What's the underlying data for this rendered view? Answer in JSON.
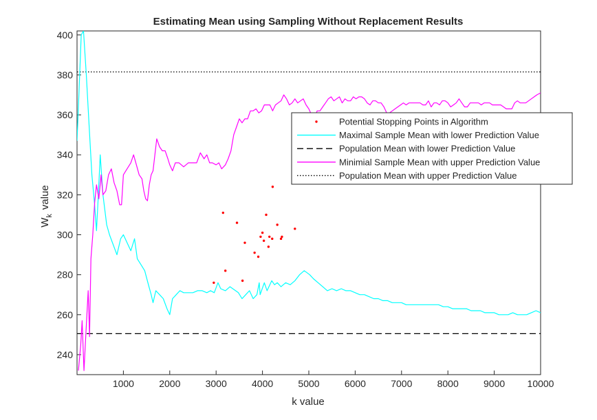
{
  "chart_data": {
    "type": "line",
    "title": "Estimating Mean using Sampling Without Replacement Results",
    "xlabel": "k value",
    "ylabel_main": "W",
    "ylabel_sub": "k",
    "ylabel_tail": "value",
    "xlim": [
      0,
      10000
    ],
    "ylim": [
      230,
      402
    ],
    "xticks": [
      1000,
      2000,
      3000,
      4000,
      5000,
      6000,
      7000,
      8000,
      9000,
      10000
    ],
    "yticks": [
      240,
      260,
      280,
      300,
      320,
      340,
      360,
      380,
      400
    ],
    "grid": false,
    "legend_position": "upper-right",
    "series": [
      {
        "name": "Potential Stopping Points in Algorithm",
        "kind": "scatter",
        "color": "#ff0000",
        "points": [
          [
            2950,
            276
          ],
          [
            3150,
            311
          ],
          [
            3200,
            282
          ],
          [
            3450,
            306
          ],
          [
            3570,
            277
          ],
          [
            3620,
            296
          ],
          [
            3830,
            291
          ],
          [
            3910,
            289
          ],
          [
            3960,
            299
          ],
          [
            4000,
            301
          ],
          [
            4030,
            297
          ],
          [
            4080,
            310
          ],
          [
            4130,
            294
          ],
          [
            4150,
            299
          ],
          [
            4210,
            298
          ],
          [
            4220,
            324
          ],
          [
            4320,
            305
          ],
          [
            4400,
            298
          ],
          [
            4420,
            299
          ],
          [
            4700,
            303
          ]
        ]
      },
      {
        "name": "Maximal Sample Mean with lower Prediction Value",
        "kind": "line",
        "color": "#00ffff",
        "dash": "solid",
        "points": [
          [
            0,
            347
          ],
          [
            40,
            370
          ],
          [
            90,
            400
          ],
          [
            140,
            402
          ],
          [
            200,
            380
          ],
          [
            260,
            355
          ],
          [
            320,
            330
          ],
          [
            380,
            315
          ],
          [
            420,
            302
          ],
          [
            460,
            320
          ],
          [
            500,
            340
          ],
          [
            560,
            320
          ],
          [
            640,
            305
          ],
          [
            700,
            300
          ],
          [
            780,
            295
          ],
          [
            860,
            290
          ],
          [
            940,
            298
          ],
          [
            1000,
            300
          ],
          [
            1080,
            296
          ],
          [
            1160,
            292
          ],
          [
            1240,
            298
          ],
          [
            1300,
            288
          ],
          [
            1380,
            285
          ],
          [
            1460,
            282
          ],
          [
            1540,
            275
          ],
          [
            1600,
            270
          ],
          [
            1640,
            266
          ],
          [
            1700,
            272
          ],
          [
            1780,
            270
          ],
          [
            1860,
            268
          ],
          [
            1940,
            263
          ],
          [
            2000,
            260
          ],
          [
            2060,
            268
          ],
          [
            2140,
            270
          ],
          [
            2220,
            272
          ],
          [
            2300,
            271
          ],
          [
            2400,
            271
          ],
          [
            2500,
            271
          ],
          [
            2600,
            272
          ],
          [
            2700,
            272
          ],
          [
            2800,
            271
          ],
          [
            2880,
            272
          ],
          [
            2960,
            271
          ],
          [
            3040,
            276
          ],
          [
            3100,
            273
          ],
          [
            3200,
            272
          ],
          [
            3300,
            274
          ],
          [
            3420,
            272
          ],
          [
            3480,
            271
          ],
          [
            3560,
            268
          ],
          [
            3640,
            270
          ],
          [
            3720,
            272
          ],
          [
            3800,
            268
          ],
          [
            3880,
            270
          ],
          [
            3930,
            276
          ],
          [
            3950,
            270
          ],
          [
            4040,
            276
          ],
          [
            4100,
            272
          ],
          [
            4200,
            277
          ],
          [
            4260,
            275
          ],
          [
            4320,
            276
          ],
          [
            4400,
            274
          ],
          [
            4500,
            276
          ],
          [
            4600,
            275
          ],
          [
            4700,
            277
          ],
          [
            4800,
            280
          ],
          [
            4900,
            282
          ],
          [
            4960,
            281
          ],
          [
            5020,
            280
          ],
          [
            5100,
            278
          ],
          [
            5200,
            276
          ],
          [
            5300,
            274
          ],
          [
            5400,
            272
          ],
          [
            5500,
            273
          ],
          [
            5600,
            272
          ],
          [
            5700,
            273
          ],
          [
            5800,
            272
          ],
          [
            5900,
            272
          ],
          [
            6000,
            271
          ],
          [
            6100,
            270
          ],
          [
            6200,
            270
          ],
          [
            6300,
            269
          ],
          [
            6400,
            268
          ],
          [
            6500,
            268
          ],
          [
            6600,
            267
          ],
          [
            6700,
            267
          ],
          [
            6800,
            266
          ],
          [
            6900,
            266
          ],
          [
            7000,
            266
          ],
          [
            7100,
            265
          ],
          [
            7200,
            265
          ],
          [
            7300,
            265
          ],
          [
            7400,
            265
          ],
          [
            7500,
            265
          ],
          [
            7600,
            265
          ],
          [
            7700,
            265
          ],
          [
            7800,
            265
          ],
          [
            7900,
            264
          ],
          [
            8000,
            264
          ],
          [
            8100,
            263
          ],
          [
            8200,
            263
          ],
          [
            8300,
            263
          ],
          [
            8400,
            263
          ],
          [
            8500,
            262
          ],
          [
            8600,
            262
          ],
          [
            8700,
            262
          ],
          [
            8800,
            261
          ],
          [
            8900,
            261
          ],
          [
            9000,
            261
          ],
          [
            9100,
            260
          ],
          [
            9200,
            260
          ],
          [
            9300,
            260
          ],
          [
            9400,
            261
          ],
          [
            9500,
            260
          ],
          [
            9600,
            260
          ],
          [
            9700,
            260
          ],
          [
            9800,
            261
          ],
          [
            9900,
            262
          ],
          [
            10000,
            261
          ]
        ]
      },
      {
        "name": "Population Mean with lower Prediction Value",
        "kind": "line",
        "color": "#000000",
        "dash": "dashed",
        "points": [
          [
            0,
            250.5
          ],
          [
            10000,
            250.5
          ]
        ]
      },
      {
        "name": "Minimial Sample Mean with upper Prediction Value",
        "kind": "line",
        "color": "#ff00ff",
        "dash": "solid",
        "points": [
          [
            30,
            232
          ],
          [
            80,
            245
          ],
          [
            110,
            257
          ],
          [
            150,
            232
          ],
          [
            190,
            250
          ],
          [
            240,
            272
          ],
          [
            270,
            249
          ],
          [
            300,
            288
          ],
          [
            340,
            300
          ],
          [
            380,
            316
          ],
          [
            420,
            325
          ],
          [
            470,
            318
          ],
          [
            520,
            330
          ],
          [
            560,
            320
          ],
          [
            620,
            322
          ],
          [
            680,
            330
          ],
          [
            740,
            333
          ],
          [
            800,
            326
          ],
          [
            860,
            322
          ],
          [
            920,
            315
          ],
          [
            960,
            315
          ],
          [
            1000,
            330
          ],
          [
            1080,
            333
          ],
          [
            1160,
            336
          ],
          [
            1220,
            340
          ],
          [
            1280,
            335
          ],
          [
            1340,
            330
          ],
          [
            1400,
            328
          ],
          [
            1440,
            322
          ],
          [
            1480,
            318
          ],
          [
            1520,
            317
          ],
          [
            1560,
            325
          ],
          [
            1600,
            330
          ],
          [
            1640,
            332
          ],
          [
            1680,
            340
          ],
          [
            1720,
            348
          ],
          [
            1780,
            344
          ],
          [
            1840,
            342
          ],
          [
            1900,
            342
          ],
          [
            1960,
            338
          ],
          [
            2000,
            335
          ],
          [
            2060,
            332
          ],
          [
            2120,
            336
          ],
          [
            2200,
            336
          ],
          [
            2300,
            334
          ],
          [
            2400,
            336
          ],
          [
            2500,
            336
          ],
          [
            2580,
            336
          ],
          [
            2660,
            341
          ],
          [
            2740,
            338
          ],
          [
            2800,
            340
          ],
          [
            2860,
            336
          ],
          [
            2920,
            336
          ],
          [
            3000,
            335
          ],
          [
            3060,
            336
          ],
          [
            3120,
            333
          ],
          [
            3200,
            335
          ],
          [
            3260,
            338
          ],
          [
            3320,
            342
          ],
          [
            3380,
            350
          ],
          [
            3440,
            354
          ],
          [
            3500,
            358
          ],
          [
            3560,
            356
          ],
          [
            3620,
            358
          ],
          [
            3680,
            358
          ],
          [
            3740,
            362
          ],
          [
            3800,
            362
          ],
          [
            3860,
            363
          ],
          [
            3920,
            361
          ],
          [
            3980,
            362
          ],
          [
            4040,
            365
          ],
          [
            4100,
            365
          ],
          [
            4160,
            365
          ],
          [
            4220,
            362
          ],
          [
            4280,
            365
          ],
          [
            4340,
            366
          ],
          [
            4400,
            367
          ],
          [
            4460,
            370
          ],
          [
            4520,
            368
          ],
          [
            4580,
            365
          ],
          [
            4640,
            366
          ],
          [
            4700,
            368
          ],
          [
            4760,
            366
          ],
          [
            4820,
            367
          ],
          [
            4880,
            368
          ],
          [
            4940,
            365
          ],
          [
            5000,
            363
          ],
          [
            5060,
            360
          ],
          [
            5120,
            358
          ],
          [
            5180,
            362
          ],
          [
            5240,
            362
          ],
          [
            5300,
            364
          ],
          [
            5360,
            366
          ],
          [
            5420,
            368
          ],
          [
            5480,
            369
          ],
          [
            5540,
            367
          ],
          [
            5600,
            368
          ],
          [
            5660,
            369
          ],
          [
            5720,
            366
          ],
          [
            5780,
            368
          ],
          [
            5840,
            367
          ],
          [
            5900,
            367
          ],
          [
            5960,
            369
          ],
          [
            6020,
            368
          ],
          [
            6080,
            369
          ],
          [
            6140,
            369
          ],
          [
            6200,
            368
          ],
          [
            6260,
            366
          ],
          [
            6320,
            365
          ],
          [
            6380,
            367
          ],
          [
            6440,
            367
          ],
          [
            6500,
            366
          ],
          [
            6560,
            366
          ],
          [
            6620,
            364
          ],
          [
            6680,
            361
          ],
          [
            6740,
            361
          ],
          [
            6800,
            362
          ],
          [
            6860,
            363
          ],
          [
            6920,
            364
          ],
          [
            6980,
            365
          ],
          [
            7040,
            366
          ],
          [
            7100,
            365
          ],
          [
            7160,
            366
          ],
          [
            7220,
            366
          ],
          [
            7280,
            366
          ],
          [
            7340,
            366
          ],
          [
            7400,
            366
          ],
          [
            7460,
            365
          ],
          [
            7520,
            365
          ],
          [
            7580,
            367
          ],
          [
            7640,
            364
          ],
          [
            7700,
            366
          ],
          [
            7760,
            366
          ],
          [
            7820,
            365
          ],
          [
            7880,
            367
          ],
          [
            7940,
            367
          ],
          [
            8000,
            366
          ],
          [
            8060,
            364
          ],
          [
            8120,
            365
          ],
          [
            8180,
            366
          ],
          [
            8240,
            368
          ],
          [
            8300,
            366
          ],
          [
            8360,
            364
          ],
          [
            8420,
            364
          ],
          [
            8480,
            366
          ],
          [
            8540,
            366
          ],
          [
            8600,
            366
          ],
          [
            8660,
            366
          ],
          [
            8720,
            365
          ],
          [
            8780,
            366
          ],
          [
            8840,
            366
          ],
          [
            8900,
            366
          ],
          [
            8960,
            365
          ],
          [
            9020,
            365
          ],
          [
            9080,
            365
          ],
          [
            9140,
            365
          ],
          [
            9200,
            364
          ],
          [
            9260,
            363
          ],
          [
            9320,
            363
          ],
          [
            9380,
            363
          ],
          [
            9440,
            366
          ],
          [
            9500,
            367
          ],
          [
            9560,
            366
          ],
          [
            9620,
            366
          ],
          [
            9680,
            366
          ],
          [
            9740,
            367
          ],
          [
            9800,
            368
          ],
          [
            9860,
            369
          ],
          [
            9920,
            370
          ],
          [
            10000,
            371
          ]
        ]
      },
      {
        "name": "Population Mean with upper Prediction Value",
        "kind": "line",
        "color": "#000000",
        "dash": "dotted",
        "points": [
          [
            0,
            381.5
          ],
          [
            10000,
            381.5
          ]
        ]
      }
    ]
  }
}
